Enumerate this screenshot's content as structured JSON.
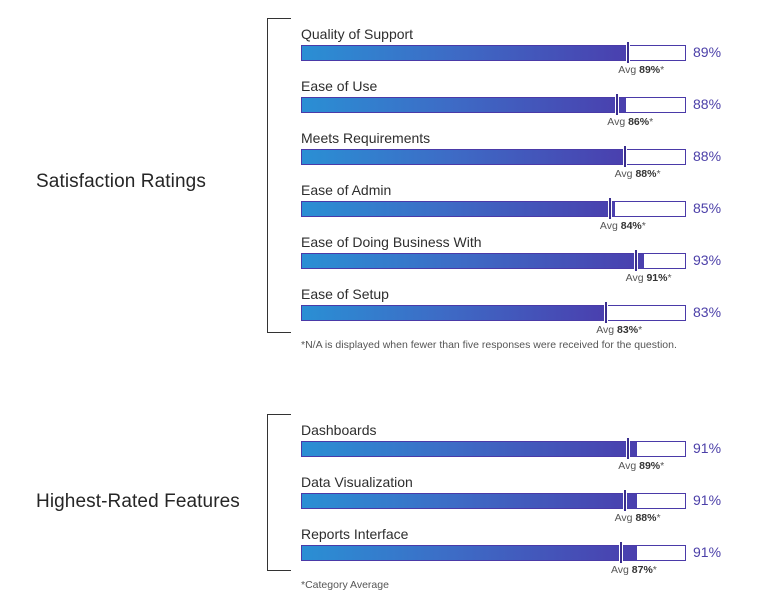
{
  "sections": [
    {
      "title": "Satisfaction Ratings",
      "note": "*N/A is displayed when fewer than five responses were received for the question.",
      "rows": [
        {
          "label": "Quality of Support",
          "value": 89,
          "value_text": "89%",
          "avg": 89,
          "avg_prefix": "Avg",
          "avg_text": "89%",
          "avg_suffix": "*"
        },
        {
          "label": "Ease of Use",
          "value": 88,
          "value_text": "88%",
          "avg": 86,
          "avg_prefix": "Avg",
          "avg_text": "86%",
          "avg_suffix": "*"
        },
        {
          "label": "Meets Requirements",
          "value": 88,
          "value_text": "88%",
          "avg": 88,
          "avg_prefix": "Avg",
          "avg_text": "88%",
          "avg_suffix": "*"
        },
        {
          "label": "Ease of Admin",
          "value": 85,
          "value_text": "85%",
          "avg": 84,
          "avg_prefix": "Avg",
          "avg_text": "84%",
          "avg_suffix": "*"
        },
        {
          "label": "Ease of Doing Business With",
          "value": 93,
          "value_text": "93%",
          "avg": 91,
          "avg_prefix": "Avg",
          "avg_text": "91%",
          "avg_suffix": "*"
        },
        {
          "label": "Ease of Setup",
          "value": 83,
          "value_text": "83%",
          "avg": 83,
          "avg_prefix": "Avg",
          "avg_text": "83%",
          "avg_suffix": "*"
        }
      ]
    },
    {
      "title": "Highest-Rated Features",
      "note": "*Category Average",
      "rows": [
        {
          "label": "Dashboards",
          "value": 91,
          "value_text": "91%",
          "avg": 89,
          "avg_prefix": "Avg",
          "avg_text": "89%",
          "avg_suffix": "*"
        },
        {
          "label": "Data Visualization",
          "value": 91,
          "value_text": "91%",
          "avg": 88,
          "avg_prefix": "Avg",
          "avg_text": "88%",
          "avg_suffix": "*"
        },
        {
          "label": "Reports Interface",
          "value": 91,
          "value_text": "91%",
          "avg": 87,
          "avg_prefix": "Avg",
          "avg_text": "87%",
          "avg_suffix": "*"
        }
      ]
    }
  ],
  "colors": {
    "bar_start": "#2a8fd4",
    "bar_end": "#4a3fae",
    "percent_text": "#4b3fa8",
    "avg_marker": "#3a2e8e"
  },
  "chart_data": [
    {
      "type": "bar",
      "title": "Satisfaction Ratings",
      "categories": [
        "Quality of Support",
        "Ease of Use",
        "Meets Requirements",
        "Ease of Admin",
        "Ease of Doing Business With",
        "Ease of Setup"
      ],
      "series": [
        {
          "values": [
            89,
            88,
            88,
            85,
            93,
            83
          ]
        },
        {
          "name": "Avg",
          "values": [
            89,
            86,
            88,
            84,
            91,
            83
          ]
        }
      ],
      "orientation": "horizontal",
      "xlim": [
        0,
        100
      ]
    },
    {
      "type": "bar",
      "title": "Highest-Rated Features",
      "categories": [
        "Dashboards",
        "Data Visualization",
        "Reports Interface"
      ],
      "series": [
        {
          "values": [
            91,
            91,
            91
          ]
        },
        {
          "name": "Avg",
          "values": [
            89,
            88,
            87
          ]
        }
      ],
      "orientation": "horizontal",
      "xlim": [
        0,
        100
      ]
    }
  ]
}
